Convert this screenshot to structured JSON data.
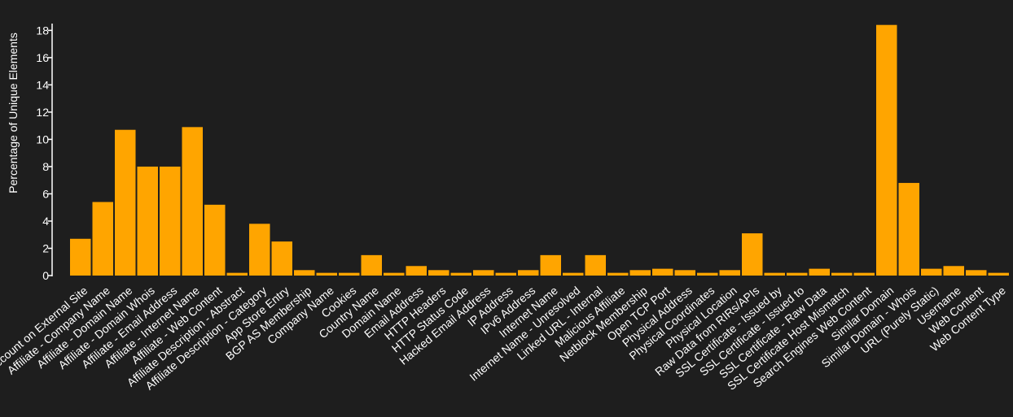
{
  "chart_data": {
    "type": "bar",
    "ylabel": "Percentage of Unique Elements",
    "ylim": [
      0,
      18.5
    ],
    "yticks": [
      0,
      2,
      4,
      6,
      8,
      10,
      12,
      14,
      16,
      18
    ],
    "grid": false,
    "bar_color": "#ffa500",
    "background_color": "#1e1e1e",
    "categories": [
      "Account on External Site",
      "Affiliate - Company Name",
      "Affiliate - Domain Name",
      "Affiliate - Domain Whois",
      "Affiliate - Email Address",
      "Affiliate - Internet Name",
      "Affiliate - Web Content",
      "Affiliate Description - Abstract",
      "Affiliate Description - Category",
      "App Store Entry",
      "BGP AS Membership",
      "Company Name",
      "Cookies",
      "Country Name",
      "Domain Name",
      "Email Address",
      "HTTP Headers",
      "HTTP Status Code",
      "Hacked Email Address",
      "IP Address",
      "IPv6 Address",
      "Internet Name",
      "Internet Name - Unresolved",
      "Linked URL - Internal",
      "Malicious Affiliate",
      "Netblock Membership",
      "Open TCP Port",
      "Physical Address",
      "Physical Coordinates",
      "Physical Location",
      "Raw Data from RIRs/APIs",
      "SSL Certificate - Issued by",
      "SSL Certificate - Issued to",
      "SSL Certificate - Raw Data",
      "SSL Certificate Host Mismatch",
      "Search Engines Web Content",
      "Similar Domain",
      "Similar Domain - Whois",
      "URL (Purely Static)",
      "Username",
      "Web Content",
      "Web Content Type"
    ],
    "values": [
      2.7,
      5.4,
      10.7,
      8.0,
      8.0,
      10.9,
      5.2,
      0.2,
      3.8,
      2.5,
      0.4,
      0.2,
      0.2,
      1.5,
      0.2,
      0.7,
      0.4,
      0.2,
      0.4,
      0.2,
      0.4,
      1.5,
      0.2,
      1.5,
      0.2,
      0.4,
      0.5,
      0.4,
      0.2,
      0.4,
      3.1,
      0.2,
      0.2,
      0.5,
      0.2,
      0.2,
      18.4,
      6.8,
      0.5,
      0.7,
      0.4,
      0.2
    ]
  }
}
